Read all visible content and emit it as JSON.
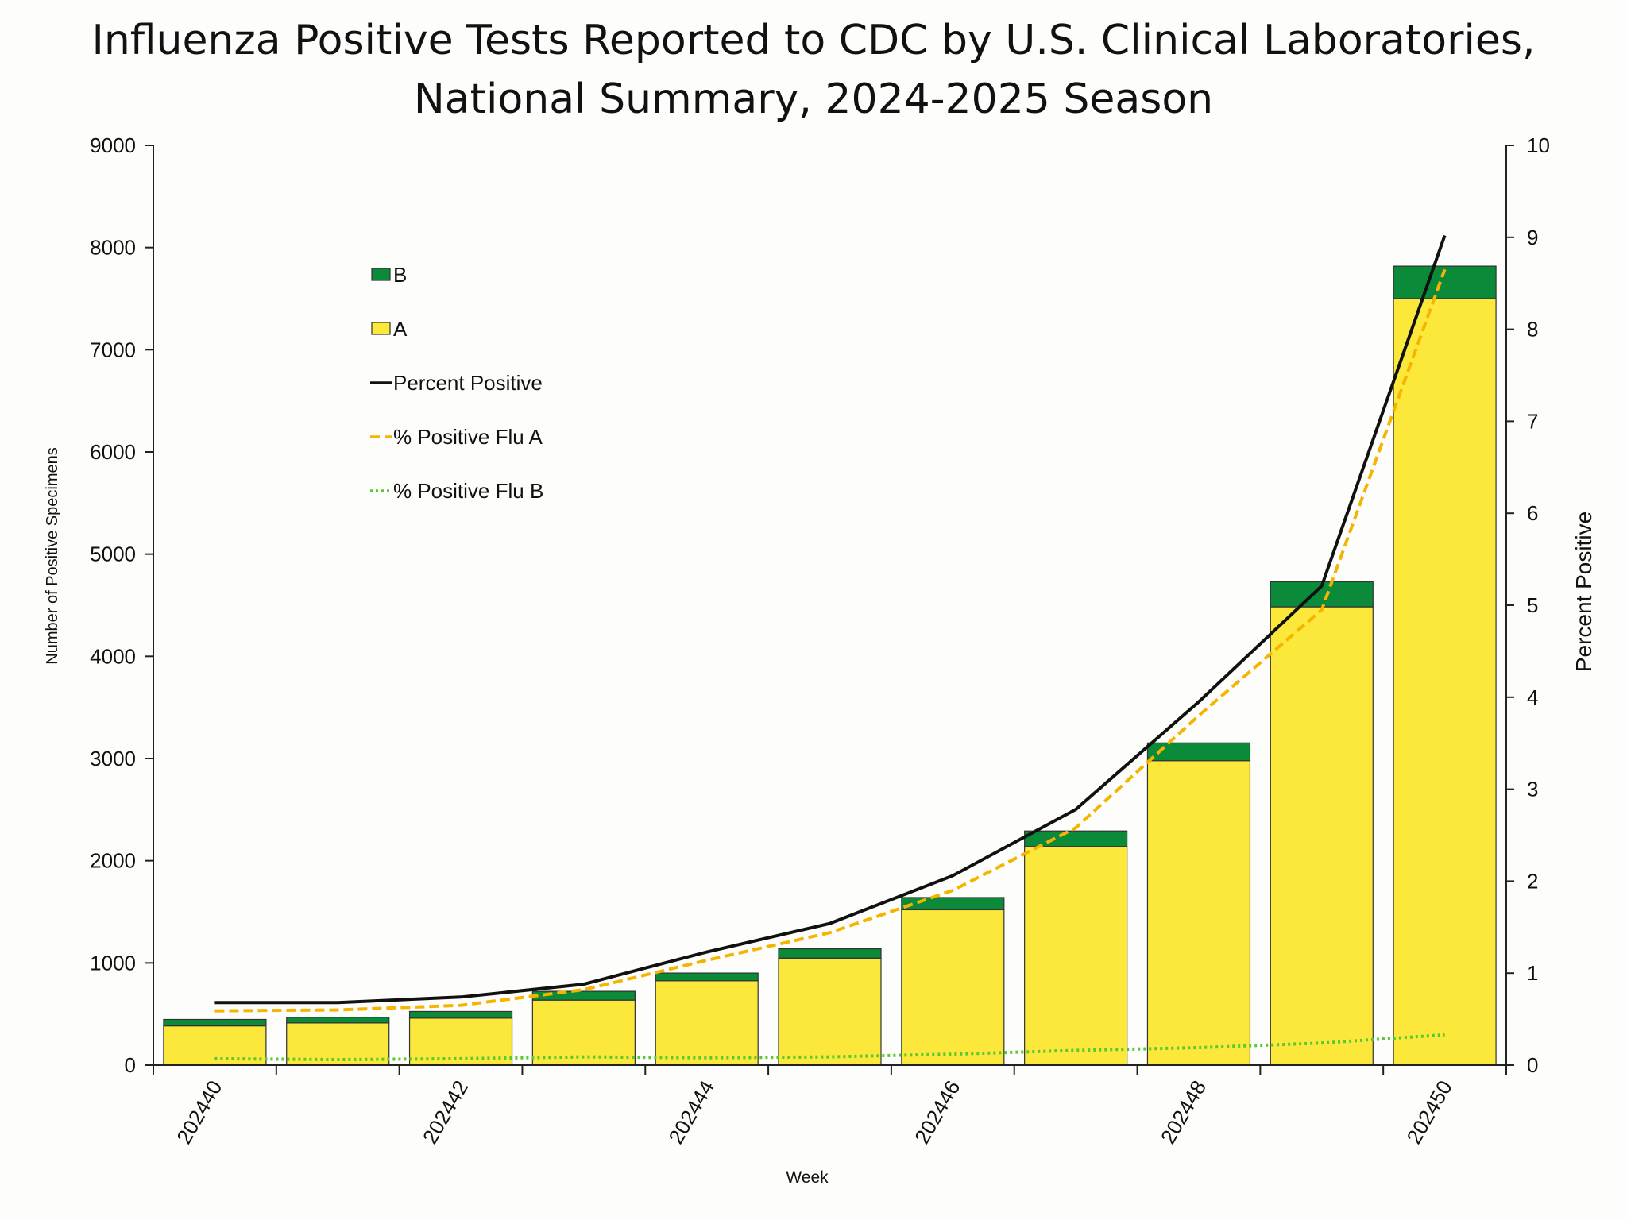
{
  "chart_data": {
    "type": "bar",
    "stacked": true,
    "title_line1": "Influenza Positive Tests Reported to CDC by U.S. Clinical Laboratories,",
    "title_line2": "National Summary, 2024-2025 Season",
    "xlabel": "Week",
    "ylabel": "Number of Positive Specimens",
    "y2label": "Percent Positive",
    "ylim": [
      0,
      9000
    ],
    "y2lim": [
      0,
      10
    ],
    "yticks": [
      "0",
      "1000",
      "2000",
      "3000",
      "4000",
      "5000",
      "6000",
      "7000",
      "8000",
      "9000"
    ],
    "y2ticks": [
      "0",
      "1",
      "2",
      "3",
      "4",
      "5",
      "6",
      "7",
      "8",
      "9",
      "10"
    ],
    "categories": [
      "202440",
      "202441",
      "202442",
      "202443",
      "202444",
      "202445",
      "202446",
      "202447",
      "202448",
      "202449",
      "202450"
    ],
    "xtick_labels": [
      "202440",
      "",
      "202442",
      "",
      "202444",
      "",
      "202446",
      "",
      "202448",
      "",
      "202450"
    ],
    "series": [
      {
        "name": "A",
        "kind": "bar",
        "color": "#fbe83b",
        "values": [
          384,
          413,
          460,
          636,
          826,
          1047,
          1520,
          2139,
          2979,
          4484,
          7501
        ]
      },
      {
        "name": "B",
        "kind": "bar",
        "color": "#0b8a3a",
        "values": [
          63,
          55,
          65,
          86,
          75,
          91,
          120,
          152,
          174,
          246,
          317
        ]
      },
      {
        "name": "Percent Positive",
        "kind": "line",
        "axis": "right",
        "color": "#111111",
        "style": "solid",
        "values": [
          0.68,
          0.68,
          0.74,
          0.88,
          1.23,
          1.54,
          2.06,
          2.78,
          3.95,
          5.21,
          9.02
        ]
      },
      {
        "name": "% Positive Flu A",
        "kind": "line",
        "axis": "right",
        "color": "#f5b400",
        "style": "dashed",
        "values": [
          0.59,
          0.6,
          0.65,
          0.82,
          1.14,
          1.44,
          1.9,
          2.58,
          3.8,
          4.95,
          8.65
        ]
      },
      {
        "name": "% Positive Flu B",
        "kind": "line",
        "axis": "right",
        "color": "#59c832",
        "style": "dotted",
        "values": [
          0.07,
          0.06,
          0.07,
          0.09,
          0.08,
          0.09,
          0.12,
          0.16,
          0.19,
          0.24,
          0.33
        ]
      }
    ],
    "legend": {
      "placement": "top-left",
      "items": [
        "B",
        "A",
        "Percent Positive",
        "% Positive Flu A",
        "% Positive Flu B"
      ]
    },
    "grid": false
  }
}
